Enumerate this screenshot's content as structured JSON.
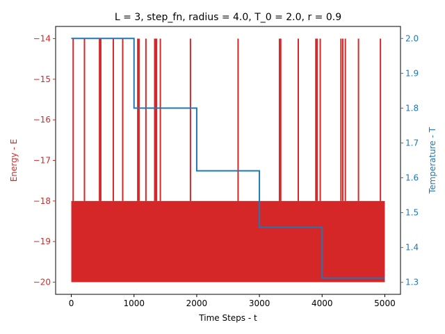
{
  "chart_data": {
    "type": "line",
    "title": "L = 3, step_fn, radius = 4.0, T_0 = 2.0, r = 0.9",
    "xlabel": "Time Steps - t",
    "ylabel_left": "Energy - E",
    "ylabel_right": "Temperature - T",
    "xlim": [
      -250,
      5250
    ],
    "ylim_left": [
      -20.3,
      -13.7
    ],
    "ylim_right": [
      1.2655,
      2.0345
    ],
    "x_ticks": [
      0,
      1000,
      2000,
      3000,
      4000,
      5000
    ],
    "x_tick_labels": [
      "0",
      "1000",
      "2000",
      "3000",
      "4000",
      "5000"
    ],
    "left_ticks": [
      -20,
      -19,
      -18,
      -17,
      -16,
      -15,
      -14
    ],
    "left_tick_labels": [
      "−20",
      "−19",
      "−18",
      "−17",
      "−16",
      "−15",
      "−14"
    ],
    "right_ticks": [
      1.3,
      1.4,
      1.5,
      1.6,
      1.7,
      1.8,
      1.9,
      2.0
    ],
    "right_tick_labels": [
      "1.3",
      "1.4",
      "1.5",
      "1.6",
      "1.7",
      "1.8",
      "1.9",
      "2.0"
    ],
    "colors": {
      "energy": "#d62728",
      "temperature": "#1f77b4",
      "axis": "#000000"
    },
    "series": [
      {
        "axis": "left",
        "color": "#d62728",
        "band_low": -20,
        "band_high": -18,
        "x_range": [
          0,
          5000
        ],
        "spikes_x": [
          30,
          210,
          450,
          470,
          670,
          820,
          1060,
          1080,
          1190,
          1330,
          1350,
          1360,
          1420,
          1900,
          2660,
          3320,
          3340,
          3620,
          3900,
          3920,
          3970,
          4300,
          4330,
          4370,
          4580,
          4930
        ],
        "spike_value": -14
      },
      {
        "axis": "right",
        "color": "#1f77b4",
        "x": [
          0,
          1000,
          1000,
          2000,
          2000,
          3000,
          3000,
          4000,
          4000,
          5000
        ],
        "y": [
          2.0,
          2.0,
          1.8,
          1.8,
          1.62,
          1.62,
          1.458,
          1.458,
          1.3122,
          1.3122
        ]
      }
    ]
  }
}
